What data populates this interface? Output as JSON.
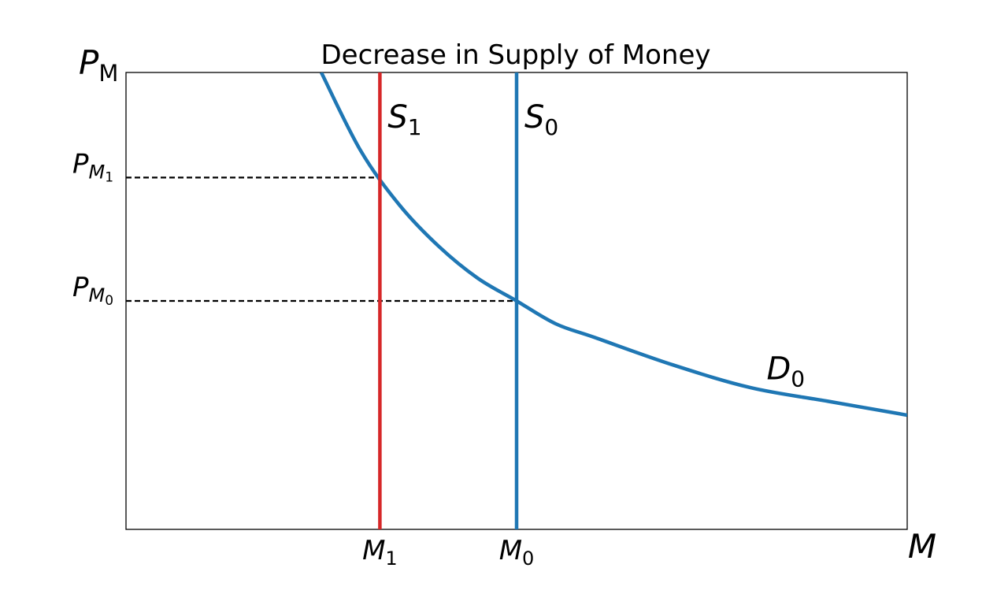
{
  "chart_data": {
    "type": "line",
    "title": "Decrease in Supply of Money",
    "axes": {
      "y_label": {
        "main": "P",
        "sub": "M"
      },
      "x_label": "M",
      "xlim": [
        0,
        10
      ],
      "ylim": [
        0,
        10
      ],
      "grid": false,
      "ticks": "none"
    },
    "demand": {
      "name": {
        "main": "D",
        "sub": "0"
      },
      "color": "#1f77b4",
      "points": [
        [
          2.5,
          10.0
        ],
        [
          3.0,
          8.3
        ],
        [
          3.5,
          7.1
        ],
        [
          4.0,
          6.2
        ],
        [
          4.5,
          5.5
        ],
        [
          5.0,
          5.0
        ],
        [
          5.5,
          4.5
        ],
        [
          6.0,
          4.2
        ],
        [
          7.0,
          3.6
        ],
        [
          8.0,
          3.1
        ],
        [
          9.0,
          2.8
        ],
        [
          10.0,
          2.5
        ]
      ]
    },
    "supply_curves": [
      {
        "name": {
          "main": "S",
          "sub": "1"
        },
        "x": 3.25,
        "color": "#d62728"
      },
      {
        "name": {
          "main": "S",
          "sub": "0"
        },
        "x": 5.0,
        "color": "#1f77b4"
      }
    ],
    "equilibria": [
      {
        "x": 3.25,
        "y": 7.7,
        "price_label": {
          "main": "P",
          "sub": "M",
          "subsub": "1"
        },
        "quantity_label": {
          "main": "M",
          "sub": "1"
        }
      },
      {
        "x": 5.0,
        "y": 5.0,
        "price_label": {
          "main": "P",
          "sub": "M",
          "subsub": "0"
        },
        "quantity_label": {
          "main": "M",
          "sub": "0"
        }
      }
    ]
  }
}
